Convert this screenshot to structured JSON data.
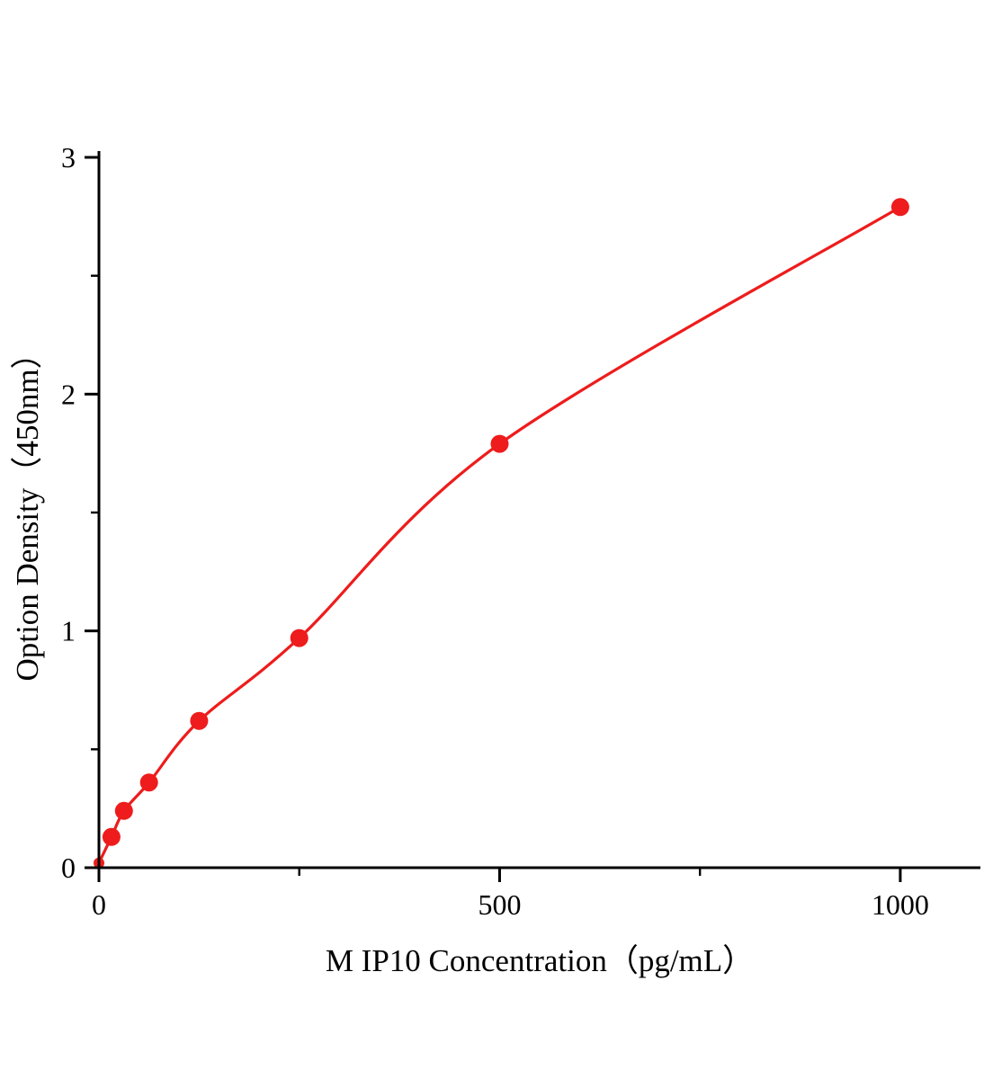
{
  "chart_data": {
    "type": "scatter",
    "title": "",
    "xlabel": "M IP10 Concentration（pg/mL）",
    "ylabel": "Option Density（450nm）",
    "x": [
      0,
      15.6,
      31.25,
      62.5,
      125,
      250,
      500,
      1000
    ],
    "y": [
      0.02,
      0.13,
      0.24,
      0.36,
      0.62,
      0.97,
      1.79,
      2.79
    ],
    "xlim": [
      0,
      1100
    ],
    "ylim": [
      0,
      3
    ],
    "x_ticks": [
      0,
      500,
      1000
    ],
    "x_minor_ticks": [
      250,
      750
    ],
    "y_ticks": [
      0,
      1,
      2,
      3
    ],
    "y_minor_ticks": [
      0.5,
      1.5,
      2.5
    ],
    "grid": false,
    "legend": "none",
    "curve": "smooth-fit-through-points",
    "accent_color": "#ee1c1c",
    "axis_color": "#000000",
    "background_color": "#ffffff"
  }
}
